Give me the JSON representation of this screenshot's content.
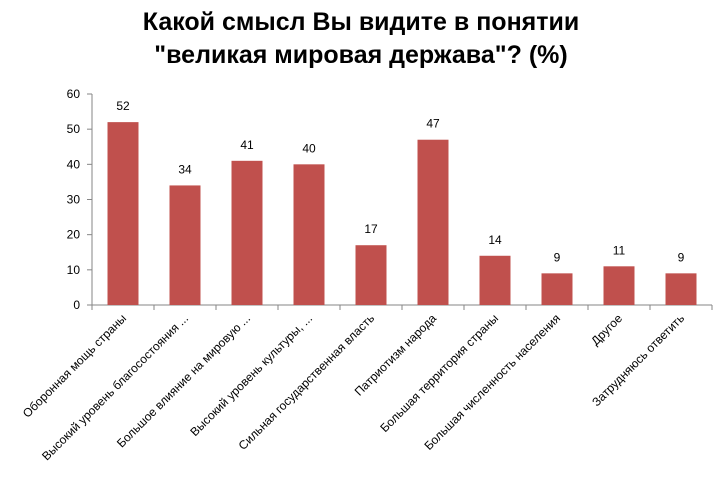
{
  "chart_data": {
    "type": "bar",
    "title_lines": [
      "Какой смысл Вы видите в понятии",
      "\"великая мировая держава\"? (%)"
    ],
    "categories": [
      "Оборонная мощь страны",
      "Высокий уровень благосостояния ...",
      "Большое влияние на мировую ...",
      "Высокий уровень культуры, ...",
      "Сильная государственная власть",
      "Патриотизм народа",
      "Большая территория страны",
      "Большая численность населения",
      "Другое",
      "Затрудняюсь ответить"
    ],
    "values": [
      52,
      34,
      41,
      40,
      17,
      47,
      14,
      9,
      11,
      9
    ],
    "ylim": [
      0,
      60
    ],
    "yticks": [
      0,
      10,
      20,
      30,
      40,
      50,
      60
    ],
    "bar_color": "#C0504D",
    "axis_color": "#868686",
    "grid": false,
    "legend": "none"
  }
}
